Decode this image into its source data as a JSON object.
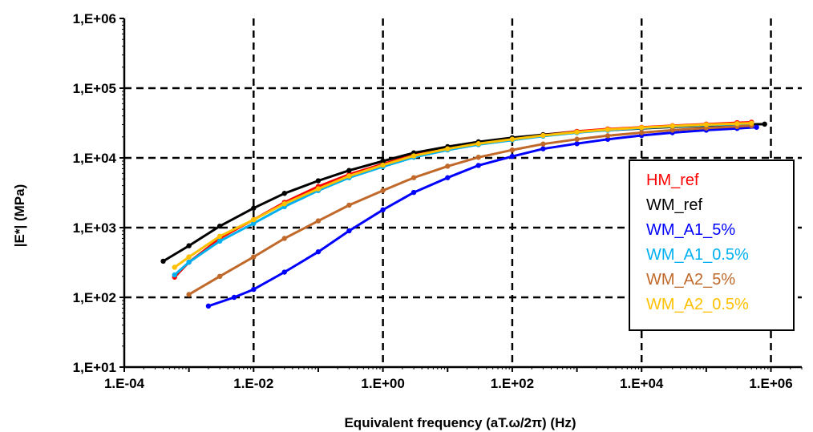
{
  "chart_data": {
    "type": "line",
    "xlabel": "Equivalent frequency (aT.ω/2π) (Hz)",
    "ylabel": "|E*| (MPa)",
    "x_scale": "log",
    "y_scale": "log",
    "xlim": [
      0.0001,
      3000000
    ],
    "ylim": [
      10,
      1000000
    ],
    "x_ticks": [
      0.0001,
      0.01,
      1,
      100,
      10000,
      1000000
    ],
    "x_tick_labels": [
      "1.E-04",
      "1.E-02",
      "1.E+00",
      "1.E+02",
      "1.E+04",
      "1.E+06"
    ],
    "y_ticks": [
      10,
      100,
      1000,
      10000,
      100000,
      1000000
    ],
    "y_tick_labels": [
      "1,E+01",
      "1,E+02",
      "1,E+03",
      "1,E+04",
      "1,E+05",
      "1,E+06"
    ],
    "grid": true,
    "legend_position": "right",
    "series": [
      {
        "name": "HM_ref",
        "color": "#ff0000",
        "points": [
          [
            0.0006,
            195
          ],
          [
            0.001,
            320
          ],
          [
            0.003,
            700
          ],
          [
            0.01,
            1300
          ],
          [
            0.03,
            2300
          ],
          [
            0.1,
            3900
          ],
          [
            0.3,
            5800
          ],
          [
            1,
            8200
          ],
          [
            3,
            11000
          ],
          [
            10,
            14000
          ],
          [
            30,
            16500
          ],
          [
            100,
            19000
          ],
          [
            300,
            21500
          ],
          [
            1000,
            24000
          ],
          [
            3000,
            26000
          ],
          [
            10000,
            27500
          ],
          [
            30000,
            29000
          ],
          [
            100000,
            30500
          ],
          [
            300000,
            32000
          ],
          [
            500000,
            32500
          ]
        ]
      },
      {
        "name": "WM_ref",
        "color": "#000000",
        "points": [
          [
            0.0004,
            330
          ],
          [
            0.001,
            550
          ],
          [
            0.003,
            1050
          ],
          [
            0.01,
            1900
          ],
          [
            0.03,
            3100
          ],
          [
            0.1,
            4700
          ],
          [
            0.3,
            6600
          ],
          [
            1,
            9000
          ],
          [
            3,
            11800
          ],
          [
            10,
            14500
          ],
          [
            30,
            17000
          ],
          [
            100,
            19500
          ],
          [
            300,
            21500
          ],
          [
            1000,
            23500
          ],
          [
            3000,
            25000
          ],
          [
            10000,
            26500
          ],
          [
            30000,
            27800
          ],
          [
            100000,
            29000
          ],
          [
            300000,
            30000
          ],
          [
            800000,
            30500
          ]
        ]
      },
      {
        "name": "WM_A1_5%",
        "color": "#0000ff",
        "points": [
          [
            0.002,
            75
          ],
          [
            0.005,
            100
          ],
          [
            0.01,
            130
          ],
          [
            0.03,
            230
          ],
          [
            0.1,
            450
          ],
          [
            0.3,
            900
          ],
          [
            1,
            1800
          ],
          [
            3,
            3200
          ],
          [
            10,
            5200
          ],
          [
            30,
            7800
          ],
          [
            100,
            10500
          ],
          [
            300,
            13500
          ],
          [
            1000,
            16000
          ],
          [
            3000,
            18500
          ],
          [
            10000,
            21000
          ],
          [
            30000,
            23000
          ],
          [
            100000,
            25000
          ],
          [
            300000,
            26500
          ],
          [
            600000,
            27500
          ]
        ]
      },
      {
        "name": "WM_A1_0.5%",
        "color": "#00b0f0",
        "points": [
          [
            0.0006,
            210
          ],
          [
            0.001,
            320
          ],
          [
            0.003,
            640
          ],
          [
            0.01,
            1150
          ],
          [
            0.03,
            2000
          ],
          [
            0.1,
            3400
          ],
          [
            0.3,
            5200
          ],
          [
            1,
            7500
          ],
          [
            3,
            10200
          ],
          [
            10,
            13000
          ],
          [
            30,
            15500
          ],
          [
            100,
            18000
          ],
          [
            300,
            20500
          ],
          [
            1000,
            23000
          ],
          [
            3000,
            25000
          ],
          [
            10000,
            26800
          ],
          [
            30000,
            28200
          ],
          [
            100000,
            29500
          ],
          [
            300000,
            30500
          ],
          [
            500000,
            31000
          ]
        ]
      },
      {
        "name": "WM_A2_5%",
        "color": "#c0692a",
        "points": [
          [
            0.001,
            110
          ],
          [
            0.003,
            200
          ],
          [
            0.01,
            380
          ],
          [
            0.03,
            700
          ],
          [
            0.1,
            1250
          ],
          [
            0.3,
            2100
          ],
          [
            1,
            3400
          ],
          [
            3,
            5200
          ],
          [
            10,
            7600
          ],
          [
            30,
            10200
          ],
          [
            100,
            13000
          ],
          [
            300,
            15800
          ],
          [
            1000,
            18500
          ],
          [
            3000,
            20800
          ],
          [
            10000,
            23000
          ],
          [
            30000,
            25000
          ],
          [
            100000,
            26800
          ],
          [
            300000,
            28200
          ],
          [
            500000,
            29000
          ]
        ]
      },
      {
        "name": "WM_A2_0.5%",
        "color": "#ffc000",
        "points": [
          [
            0.0006,
            270
          ],
          [
            0.001,
            380
          ],
          [
            0.003,
            750
          ],
          [
            0.01,
            1300
          ],
          [
            0.03,
            2200
          ],
          [
            0.1,
            3600
          ],
          [
            0.3,
            5500
          ],
          [
            1,
            7900
          ],
          [
            3,
            10700
          ],
          [
            10,
            13500
          ],
          [
            30,
            16000
          ],
          [
            100,
            18500
          ],
          [
            300,
            21000
          ],
          [
            1000,
            23500
          ],
          [
            3000,
            25500
          ],
          [
            10000,
            27200
          ],
          [
            30000,
            28700
          ],
          [
            100000,
            30000
          ],
          [
            300000,
            31000
          ],
          [
            500000,
            31500
          ]
        ]
      }
    ]
  }
}
